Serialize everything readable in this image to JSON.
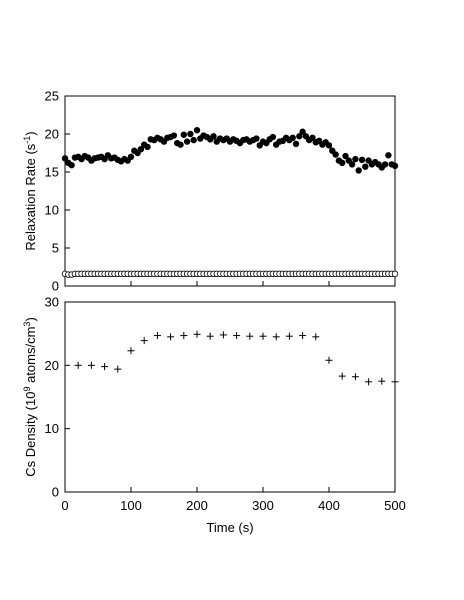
{
  "chart_data": [
    {
      "type": "scatter",
      "ylabel_main": "Relaxation Rate (s",
      "ylabel_sup": "-1",
      "ylabel_end": ")",
      "xlim": [
        0,
        500
      ],
      "ylim": [
        0,
        25
      ],
      "yticks": [
        0,
        5,
        10,
        15,
        20,
        25
      ],
      "ytick_labels": [
        "0",
        "5",
        "10",
        "15",
        "20",
        "25"
      ],
      "xticks": [
        0,
        100,
        200,
        300,
        400,
        500
      ],
      "series": [
        {
          "marker": "filled-circle",
          "color": "#000000",
          "x": [
            0,
            5,
            10,
            15,
            20,
            25,
            30,
            35,
            40,
            45,
            50,
            55,
            60,
            65,
            70,
            75,
            80,
            85,
            90,
            95,
            100,
            105,
            110,
            115,
            120,
            125,
            130,
            135,
            140,
            145,
            150,
            155,
            160,
            165,
            170,
            175,
            180,
            185,
            190,
            195,
            200,
            205,
            210,
            215,
            220,
            225,
            230,
            235,
            240,
            245,
            250,
            255,
            260,
            265,
            270,
            275,
            280,
            285,
            290,
            295,
            300,
            305,
            310,
            315,
            320,
            325,
            330,
            335,
            340,
            345,
            350,
            355,
            360,
            365,
            370,
            375,
            380,
            385,
            390,
            395,
            400,
            405,
            410,
            415,
            420,
            425,
            430,
            435,
            440,
            445,
            450,
            455,
            460,
            465,
            470,
            475,
            480,
            485,
            490,
            495,
            500
          ],
          "y": [
            16.8,
            16.2,
            15.9,
            16.9,
            17.0,
            16.7,
            17.1,
            16.9,
            16.5,
            16.8,
            16.9,
            17.0,
            16.7,
            17.2,
            16.8,
            16.9,
            16.6,
            16.4,
            16.7,
            16.5,
            17.0,
            17.8,
            17.5,
            18.0,
            18.6,
            18.3,
            19.3,
            19.2,
            19.5,
            19.3,
            19.0,
            19.5,
            19.6,
            19.8,
            18.8,
            18.6,
            19.9,
            19.0,
            20.0,
            19.2,
            20.5,
            19.4,
            19.8,
            19.6,
            19.3,
            19.7,
            19.0,
            19.4,
            19.2,
            19.4,
            19.0,
            19.3,
            19.1,
            18.8,
            19.2,
            19.3,
            19.0,
            19.2,
            19.4,
            18.5,
            19.0,
            18.8,
            19.3,
            19.6,
            18.6,
            19.0,
            19.1,
            19.5,
            19.2,
            19.5,
            18.7,
            19.7,
            20.3,
            19.7,
            19.2,
            19.5,
            18.9,
            19.1,
            18.6,
            18.9,
            18.5,
            17.8,
            17.3,
            16.5,
            16.2,
            17.1,
            16.5,
            16.0,
            16.7,
            15.2,
            16.6,
            15.7,
            16.5,
            16.0,
            16.3,
            16.0,
            15.6,
            16.0,
            17.2,
            16.0,
            15.8
          ]
        },
        {
          "marker": "open-circle",
          "color": "#000000",
          "x": [
            0,
            5,
            10,
            15,
            20,
            25,
            30,
            35,
            40,
            45,
            50,
            55,
            60,
            65,
            70,
            75,
            80,
            85,
            90,
            95,
            100,
            105,
            110,
            115,
            120,
            125,
            130,
            135,
            140,
            145,
            150,
            155,
            160,
            165,
            170,
            175,
            180,
            185,
            190,
            195,
            200,
            205,
            210,
            215,
            220,
            225,
            230,
            235,
            240,
            245,
            250,
            255,
            260,
            265,
            270,
            275,
            280,
            285,
            290,
            295,
            300,
            305,
            310,
            315,
            320,
            325,
            330,
            335,
            340,
            345,
            350,
            355,
            360,
            365,
            370,
            375,
            380,
            385,
            390,
            395,
            400,
            405,
            410,
            415,
            420,
            425,
            430,
            435,
            440,
            445,
            450,
            455,
            460,
            465,
            470,
            475,
            480,
            485,
            490,
            495,
            500
          ],
          "y": [
            1.6,
            1.5,
            1.5,
            1.6,
            1.6,
            1.6,
            1.6,
            1.6,
            1.6,
            1.6,
            1.6,
            1.6,
            1.6,
            1.6,
            1.6,
            1.6,
            1.6,
            1.6,
            1.6,
            1.6,
            1.6,
            1.6,
            1.6,
            1.6,
            1.6,
            1.6,
            1.6,
            1.6,
            1.6,
            1.6,
            1.6,
            1.6,
            1.6,
            1.6,
            1.6,
            1.6,
            1.6,
            1.6,
            1.6,
            1.6,
            1.6,
            1.6,
            1.6,
            1.6,
            1.6,
            1.6,
            1.6,
            1.6,
            1.6,
            1.6,
            1.6,
            1.6,
            1.6,
            1.6,
            1.6,
            1.6,
            1.6,
            1.6,
            1.6,
            1.6,
            1.6,
            1.6,
            1.6,
            1.6,
            1.6,
            1.6,
            1.6,
            1.6,
            1.6,
            1.6,
            1.6,
            1.6,
            1.6,
            1.6,
            1.6,
            1.6,
            1.6,
            1.6,
            1.6,
            1.6,
            1.6,
            1.6,
            1.6,
            1.6,
            1.6,
            1.6,
            1.6,
            1.6,
            1.6,
            1.6,
            1.6,
            1.6,
            1.6,
            1.6,
            1.6,
            1.6,
            1.6,
            1.6,
            1.6,
            1.6,
            1.6
          ]
        }
      ]
    },
    {
      "type": "scatter",
      "ylabel_main": "Cs Density (10",
      "ylabel_sup": "9",
      "ylabel_mid": " atoms/cm",
      "ylabel_sup2": "3",
      "ylabel_end": ")",
      "xlabel": "Time (s)",
      "xlim": [
        0,
        500
      ],
      "ylim": [
        0,
        30
      ],
      "yticks": [
        0,
        10,
        20,
        30
      ],
      "ytick_labels": [
        "0",
        "10",
        "20",
        "30"
      ],
      "xticks": [
        0,
        100,
        200,
        300,
        400,
        500
      ],
      "xtick_labels": [
        "0",
        "100",
        "200",
        "300",
        "400",
        "500"
      ],
      "series": [
        {
          "marker": "plus",
          "color": "#000000",
          "x": [
            20,
            40,
            60,
            80,
            100,
            120,
            140,
            160,
            180,
            200,
            220,
            240,
            260,
            280,
            300,
            320,
            340,
            360,
            380,
            400,
            420,
            440,
            460,
            480,
            500
          ],
          "y": [
            20.0,
            20.0,
            19.8,
            19.4,
            22.3,
            23.9,
            24.7,
            24.5,
            24.7,
            24.9,
            24.6,
            24.8,
            24.7,
            24.6,
            24.6,
            24.5,
            24.6,
            24.7,
            24.5,
            20.8,
            18.3,
            18.2,
            17.4,
            17.5,
            17.4
          ]
        }
      ]
    }
  ]
}
